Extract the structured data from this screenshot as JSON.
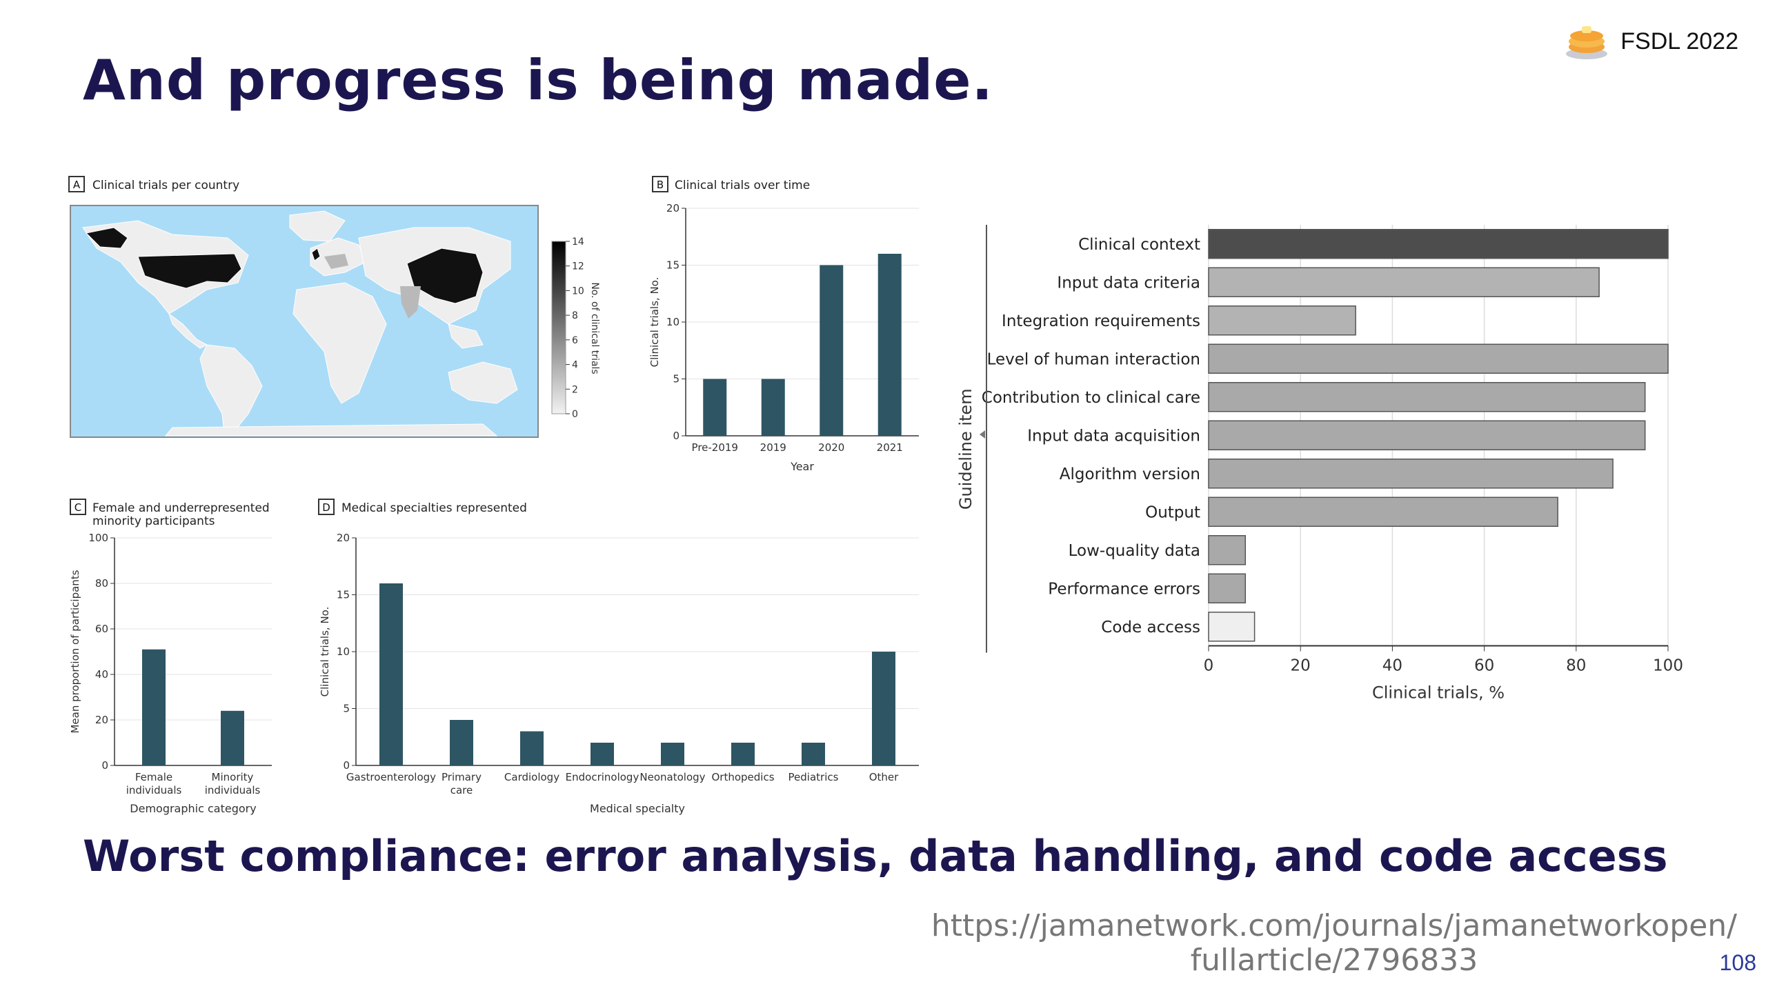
{
  "slide": {
    "title": "And progress is being made.",
    "subtitle": "Worst compliance: error analysis, data handling, and code access",
    "brand": "FSDL 2022",
    "citation_line1": "https://jamanetwork.com/journals/jamanetworkopen/",
    "citation_line2": "fullarticle/2796833",
    "page_number": "108",
    "colors": {
      "title": "#1c1650",
      "bar_dark": "#2e5563",
      "map_water": "#aadcf7",
      "map_land": "#eeeeee"
    }
  },
  "panels": {
    "a": {
      "letter": "A",
      "title": "Clinical trials per country",
      "colorbar_label": "No. of clinical trials",
      "colorbar_ticks": [
        "14",
        "12",
        "10",
        "8",
        "6",
        "4",
        "2",
        "0"
      ]
    },
    "b": {
      "letter": "B",
      "title": "Clinical trials over time"
    },
    "c": {
      "letter": "C",
      "title_line1": "Female and underrepresented",
      "title_line2": "minority participants"
    },
    "d": {
      "letter": "D",
      "title": "Medical specialties represented"
    }
  },
  "chart_data": [
    {
      "id": "b",
      "type": "bar",
      "title": "Clinical trials over time",
      "xlabel": "Year",
      "ylabel": "Clinical trials, No.",
      "categories": [
        "Pre-2019",
        "2019",
        "2020",
        "2021"
      ],
      "values": [
        5,
        5,
        15,
        16
      ],
      "ylim": [
        0,
        20
      ],
      "yticks": [
        0,
        5,
        10,
        15,
        20
      ],
      "grid": true,
      "color": "#2e5563"
    },
    {
      "id": "c",
      "type": "bar",
      "title": "Female and underrepresented minority participants",
      "xlabel": "Demographic category",
      "ylabel": "Mean proportion of participants",
      "categories": [
        "Female individuals",
        "Minority individuals"
      ],
      "category_lines": [
        [
          "Female",
          "individuals"
        ],
        [
          "Minority",
          "individuals"
        ]
      ],
      "values": [
        51,
        24
      ],
      "ylim": [
        0,
        100
      ],
      "yticks": [
        0,
        20,
        40,
        60,
        80,
        100
      ],
      "grid": true,
      "color": "#2e5563"
    },
    {
      "id": "d",
      "type": "bar",
      "title": "Medical specialties represented",
      "xlabel": "Medical specialty",
      "ylabel": "Clinical trials, No.",
      "categories": [
        "Gastroenterology",
        "Primary care",
        "Cardiology",
        "Endocrinology",
        "Neonatology",
        "Orthopedics",
        "Pediatrics",
        "Other"
      ],
      "category_lines": [
        [
          "Gastroenterology"
        ],
        [
          "Primary",
          "care"
        ],
        [
          "Cardiology"
        ],
        [
          "Endocrinology"
        ],
        [
          "Neonatology"
        ],
        [
          "Orthopedics"
        ],
        [
          "Pediatrics"
        ],
        [
          "Other"
        ]
      ],
      "values": [
        16,
        4,
        3,
        2,
        2,
        2,
        2,
        10
      ],
      "ylim": [
        0,
        20
      ],
      "yticks": [
        0,
        5,
        10,
        15,
        20
      ],
      "grid": true,
      "color": "#2e5563"
    },
    {
      "id": "e",
      "type": "bar",
      "orientation": "horizontal",
      "xlabel": "Clinical trials, %",
      "ylabel": "Guideline item",
      "categories": [
        "Clinical context",
        "Input data criteria",
        "Integration requirements",
        "Level of human interaction",
        "Contribution to clinical care",
        "Input data acquisition",
        "Algorithm version",
        "Output",
        "Low-quality data",
        "Performance errors",
        "Code access"
      ],
      "values": [
        100,
        85,
        32,
        100,
        95,
        95,
        88,
        76,
        8,
        8,
        10
      ],
      "bar_colors": [
        "#4d4d4d",
        "#b3b3b3",
        "#b3b3b3",
        "#a9a9a9",
        "#a9a9a9",
        "#a9a9a9",
        "#a9a9a9",
        "#a9a9a9",
        "#a9a9a9",
        "#a9a9a9",
        "#efefef"
      ],
      "xlim": [
        0,
        100
      ],
      "xticks": [
        0,
        20,
        40,
        60,
        80,
        100
      ],
      "grid": true
    }
  ]
}
